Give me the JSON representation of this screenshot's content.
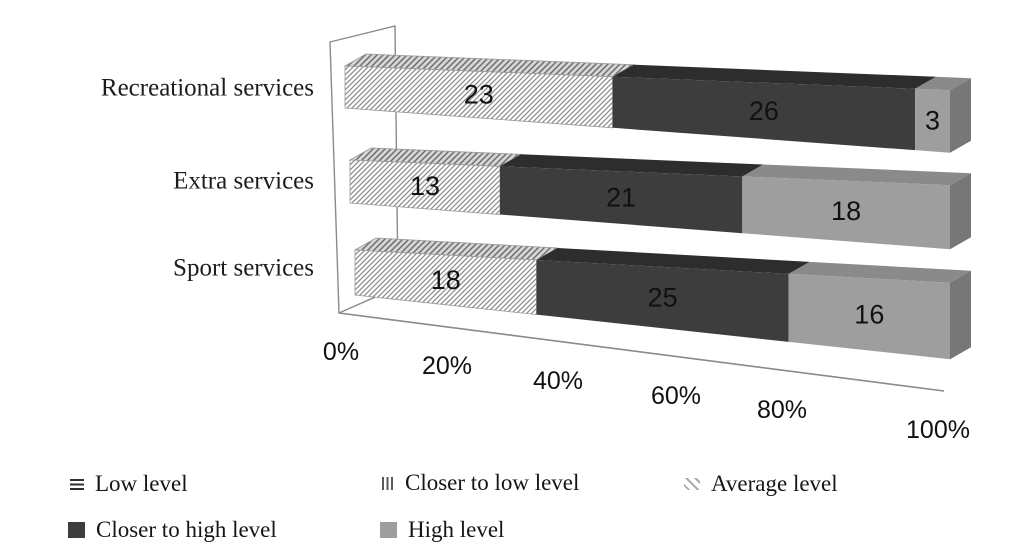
{
  "chart_data": {
    "type": "bar",
    "subtype": "3d-stacked-horizontal-100pct",
    "title": "",
    "xlabel": "",
    "ylabel": "",
    "xlim": [
      0,
      100
    ],
    "x_ticks": [
      "0%",
      "20%",
      "40%",
      "60%",
      "80%",
      "100%"
    ],
    "grid": false,
    "legend_position": "bottom",
    "categories": [
      "Recreational services",
      "Extra services",
      "Sport services"
    ],
    "series": [
      {
        "name": "Low level",
        "pattern": "horizontal-lines",
        "values": [
          0,
          0,
          0
        ]
      },
      {
        "name": "Closer to low level",
        "pattern": "vertical-lines",
        "values": [
          0,
          0,
          0
        ]
      },
      {
        "name": "Average level",
        "pattern": "diagonal-hatch",
        "values": [
          23,
          13,
          18
        ]
      },
      {
        "name": "Closer to high level",
        "color": "#3d3d3d",
        "color_top": "#2d2d2d",
        "color_side": "#242424",
        "values": [
          26,
          21,
          25
        ]
      },
      {
        "name": "High level",
        "color": "#9e9e9e",
        "color_top": "#8a8a8a",
        "color_side": "#777777",
        "values": [
          3,
          18,
          16
        ]
      }
    ],
    "frame_color": "#8a8a8a",
    "hatch_line_color": "#8d8d8d"
  }
}
